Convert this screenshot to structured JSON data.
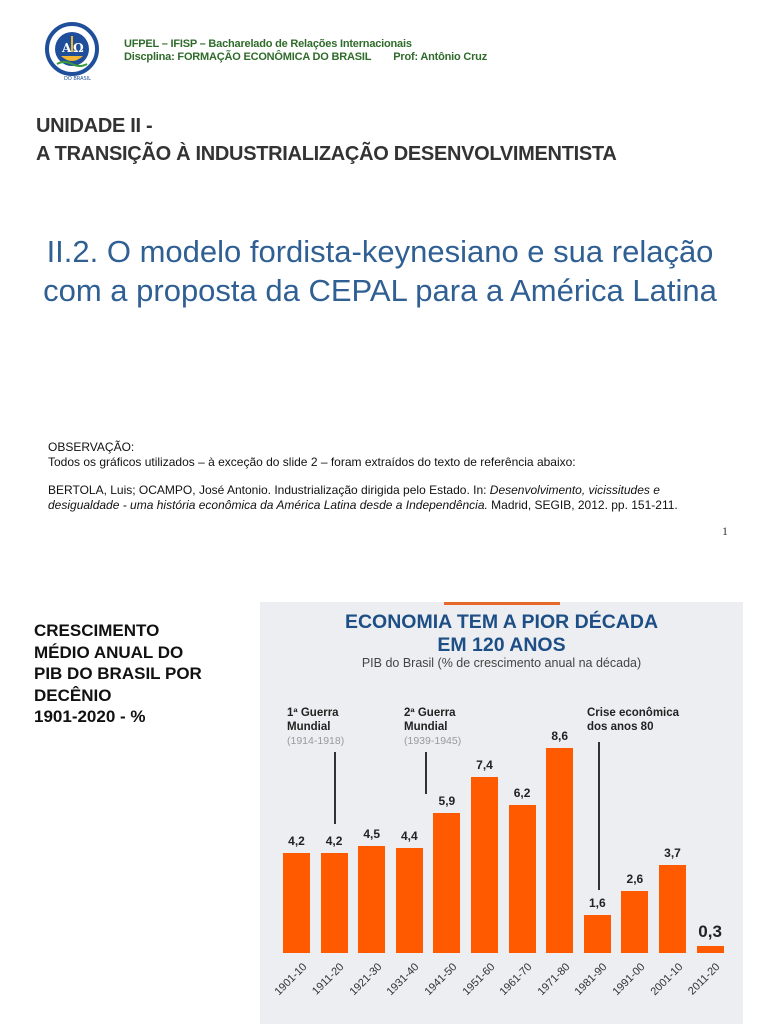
{
  "header": {
    "line1": "UFPEL – IFISP – Bacharelado de Relações Internacionais",
    "line2": "Discplina: FORMAÇÃO ECONÔMICA DO BRASIL",
    "prof": "Prof: Antônio Cruz",
    "logo_icon": "university-seal-icon"
  },
  "unit": {
    "line1": "UNIDADE II -",
    "line2": "A TRANSIÇÃO À INDUSTRIALIZAÇÃO DESENVOLVIMENTISTA"
  },
  "subtitle": "II.2. O modelo fordista-keynesiano e sua relação com a proposta da CEPAL para a América Latina",
  "observation": {
    "label": "OBSERVAÇÃO:",
    "text": "Todos os gráficos utilizados – à exceção do slide 2 – foram extraídos do texto de referência abaixo:",
    "ref_plain1": "BERTOLA, Luis; OCAMPO, José Antonio. Industrialização dirigida pelo Estado. In: ",
    "ref_italic": "Desenvolvimento, vicissitudes e desigualdade - uma história econômica da América Latina desde a Independência.",
    "ref_plain2": " Madrid, SEGIB, 2012. pp. 151-211."
  },
  "page_number": "1",
  "slide2": {
    "left_title_lines": [
      "CRESCIMENTO",
      "MÉDIO ANUAL DO",
      "PIB DO BRASIL POR",
      "DECÊNIO",
      "1901-2020 - %"
    ]
  },
  "chart_data": {
    "type": "bar",
    "title": "ECONOMIA TEM A PIOR DÉCADA EM 120 ANOS",
    "title_line1": "ECONOMIA TEM A PIOR DÉCADA",
    "title_line2": "EM 120 ANOS",
    "subtitle": "PIB do Brasil (% de crescimento anual na década)",
    "categories": [
      "1901-10",
      "1911-20",
      "1921-30",
      "1931-40",
      "1941-50",
      "1951-60",
      "1961-70",
      "1971-80",
      "1981-90",
      "1991-00",
      "2001-10",
      "2011-20"
    ],
    "values": [
      4.2,
      4.2,
      4.5,
      4.4,
      5.9,
      7.4,
      6.2,
      8.6,
      1.6,
      2.6,
      3.7,
      0.3
    ],
    "labels": [
      "4,2",
      "4,2",
      "4,5",
      "4,4",
      "5,9",
      "7,4",
      "6,2",
      "8,6",
      "1,6",
      "2,6",
      "3,7",
      "0,3"
    ],
    "xlabel": "",
    "ylabel": "",
    "grid": false,
    "bar_color": "#ff5a00",
    "title_color": "#1d4f86",
    "annotations": [
      {
        "title1": "1ª Guerra",
        "title2": "Mundial",
        "years": "(1914-1918)",
        "category": "1911-20"
      },
      {
        "title1": "2ª Guerra",
        "title2": "Mundial",
        "years": "(1939-1945)",
        "category": "1941-50"
      },
      {
        "title1": "Crise econômica",
        "title2": "dos anos 80",
        "years": "",
        "category": "1981-90"
      }
    ]
  }
}
